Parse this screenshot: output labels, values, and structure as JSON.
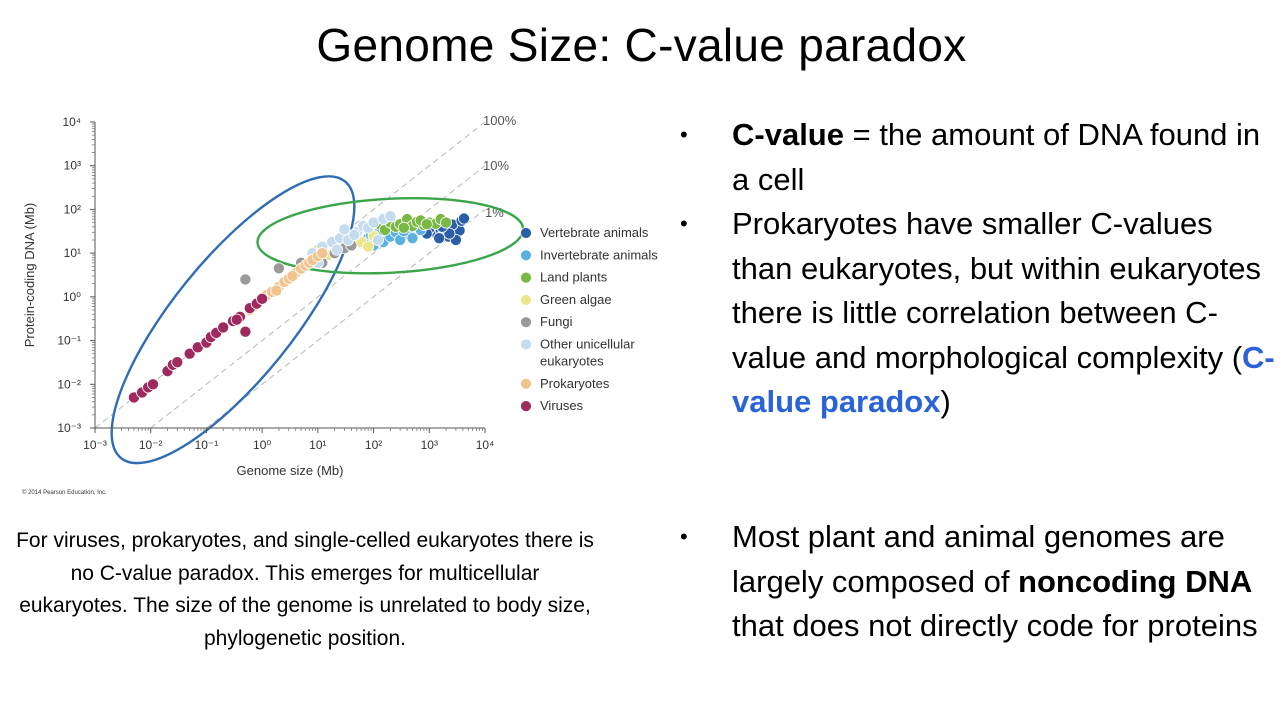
{
  "slide": {
    "title": "Genome Size: C-value paradox",
    "copyright": "© 2014 Pearson Education, Inc.",
    "caption": "For viruses, prokaryotes, and single-celled eukaryotes there is no C-value paradox. This emerges for multicellular eukaryotes. The size of the genome is unrelated to body size, phylogenetic position."
  },
  "bullets": {
    "b1_bold": "C-value",
    "b1_rest": " = the amount of DNA found in a cell",
    "b2_text": "Prokaryotes have smaller C-values than eukaryotes, but within eukaryotes there is little correlation between C-value and morphological complexity (",
    "b2_emph": "C-value paradox",
    "b2_end": ")",
    "b3_text": "Most plant and animal genomes are largely composed of ",
    "b3_bold": "noncoding DNA",
    "b3_end": " that does not directly code for proteins",
    "marker": "•"
  },
  "chart_data": {
    "type": "scatter",
    "xlabel": "Genome size (Mb)",
    "ylabel": "Protein-coding DNA (Mb)",
    "x_scale": "log",
    "y_scale": "log",
    "xlim": [
      0.001,
      10000
    ],
    "ylim": [
      0.001,
      10000
    ],
    "x_ticks": [
      "10⁻³",
      "10⁻²",
      "10⁻¹",
      "10⁰",
      "10¹",
      "10²",
      "10³",
      "10⁴"
    ],
    "y_ticks": [
      "10⁻³",
      "10⁻²",
      "10⁻¹",
      "10⁰",
      "10¹",
      "10²",
      "10³",
      "10⁴"
    ],
    "reference_lines": [
      {
        "label": "100%",
        "fraction": 1.0
      },
      {
        "label": "10%",
        "fraction": 0.1
      },
      {
        "label": "1%",
        "fraction": 0.01
      }
    ],
    "ellipses": [
      {
        "color": "#2e6db4",
        "center": [
          0.3,
          0.3
        ],
        "note": "blue"
      },
      {
        "color": "#3aa64a",
        "center": [
          200,
          25
        ],
        "note": "green"
      }
    ],
    "legend_position": "right",
    "series": [
      {
        "name": "Vertebrate animals",
        "color": "#2c5ea8",
        "points": [
          [
            1200,
            30
          ],
          [
            1400,
            26
          ],
          [
            1600,
            34
          ],
          [
            1800,
            28
          ],
          [
            2000,
            32
          ],
          [
            2200,
            24
          ],
          [
            2500,
            36
          ],
          [
            2800,
            30
          ],
          [
            3000,
            25
          ],
          [
            3200,
            40
          ],
          [
            3500,
            33
          ],
          [
            1000,
            36
          ],
          [
            900,
            28
          ],
          [
            2600,
            45
          ],
          [
            3800,
            55
          ],
          [
            4200,
            62
          ],
          [
            3000,
            20
          ],
          [
            2300,
            28
          ],
          [
            1500,
            22
          ],
          [
            1700,
            40
          ]
        ]
      },
      {
        "name": "Invertebrate animals",
        "color": "#5ab0e0",
        "points": [
          [
            30,
            14
          ],
          [
            40,
            20
          ],
          [
            60,
            17
          ],
          [
            80,
            22
          ],
          [
            100,
            15
          ],
          [
            120,
            28
          ],
          [
            150,
            18
          ],
          [
            200,
            24
          ],
          [
            250,
            30
          ],
          [
            300,
            20
          ],
          [
            450,
            26
          ],
          [
            700,
            34
          ],
          [
            90,
            26
          ],
          [
            350,
            32
          ],
          [
            500,
            22
          ]
        ]
      },
      {
        "name": "Land plants",
        "color": "#78b843",
        "points": [
          [
            130,
            45
          ],
          [
            160,
            34
          ],
          [
            200,
            50
          ],
          [
            250,
            40
          ],
          [
            300,
            46
          ],
          [
            400,
            60
          ],
          [
            500,
            42
          ],
          [
            600,
            52
          ],
          [
            800,
            44
          ],
          [
            1000,
            50
          ],
          [
            1300,
            47
          ],
          [
            1600,
            60
          ],
          [
            2000,
            50
          ],
          [
            350,
            38
          ],
          [
            700,
            56
          ],
          [
            900,
            46
          ]
        ]
      },
      {
        "name": "Green algae",
        "color": "#ece58a",
        "points": [
          [
            10,
            12
          ],
          [
            20,
            16
          ],
          [
            40,
            22
          ],
          [
            60,
            18
          ],
          [
            100,
            25
          ],
          [
            80,
            14
          ],
          [
            15,
            9
          ]
        ]
      },
      {
        "name": "Fungi",
        "color": "#9a9a9a",
        "points": [
          [
            0.5,
            2.5
          ],
          [
            5,
            6
          ],
          [
            12,
            6
          ],
          [
            20,
            10
          ],
          [
            30,
            13
          ],
          [
            40,
            15
          ],
          [
            2,
            4.5
          ],
          [
            50,
            28
          ]
        ]
      },
      {
        "name": "Other unicellular eukaryotes",
        "color": "#c5dcef",
        "points": [
          [
            8,
            10
          ],
          [
            12,
            14
          ],
          [
            18,
            18
          ],
          [
            25,
            22
          ],
          [
            35,
            20
          ],
          [
            50,
            30
          ],
          [
            65,
            42
          ],
          [
            80,
            38
          ],
          [
            100,
            50
          ],
          [
            150,
            60
          ],
          [
            200,
            70
          ],
          [
            120,
            20
          ],
          [
            45,
            26
          ],
          [
            22,
            12
          ],
          [
            10,
            6
          ],
          [
            30,
            35
          ]
        ]
      },
      {
        "name": "Prokaryotes",
        "color": "#f1c48e",
        "points": [
          [
            0.6,
            0.5
          ],
          [
            0.8,
            0.7
          ],
          [
            1,
            0.9
          ],
          [
            1.2,
            1.1
          ],
          [
            1.5,
            1.3
          ],
          [
            2,
            1.7
          ],
          [
            2.5,
            2.2
          ],
          [
            3,
            2.6
          ],
          [
            4,
            3.5
          ],
          [
            5,
            4.4
          ],
          [
            6,
            5.2
          ],
          [
            7,
            6
          ],
          [
            8,
            7
          ],
          [
            10,
            8.5
          ],
          [
            12,
            10
          ],
          [
            1.8,
            1.4
          ],
          [
            3.5,
            3.0
          ],
          [
            0.7,
            0.6
          ]
        ]
      },
      {
        "name": "Viruses",
        "color": "#9e2a5e",
        "points": [
          [
            0.005,
            0.005
          ],
          [
            0.007,
            0.0065
          ],
          [
            0.009,
            0.0085
          ],
          [
            0.011,
            0.01
          ],
          [
            0.02,
            0.02
          ],
          [
            0.025,
            0.028
          ],
          [
            0.03,
            0.032
          ],
          [
            0.05,
            0.05
          ],
          [
            0.07,
            0.07
          ],
          [
            0.1,
            0.09
          ],
          [
            0.12,
            0.12
          ],
          [
            0.15,
            0.15
          ],
          [
            0.2,
            0.2
          ],
          [
            0.3,
            0.28
          ],
          [
            0.4,
            0.35
          ],
          [
            0.5,
            0.16
          ],
          [
            0.6,
            0.55
          ],
          [
            0.8,
            0.7
          ],
          [
            1,
            0.9
          ],
          [
            0.35,
            0.3
          ]
        ]
      }
    ]
  }
}
